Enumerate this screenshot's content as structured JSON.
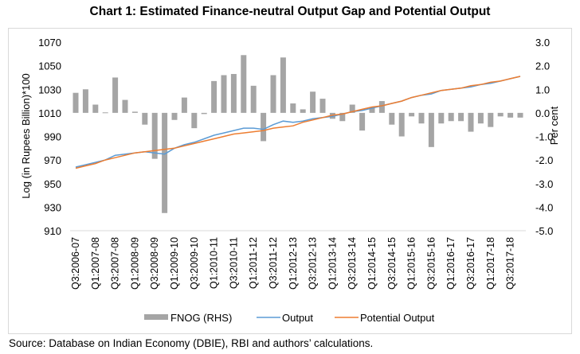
{
  "title": "Chart 1: Estimated Finance-neutral Output Gap and Potential Output",
  "source": "Source: Database on Indian Economy (DBIE), RBI and authors’ calculations.",
  "chart_data": {
    "type": "bar+line",
    "title": "Chart 1: Estimated Finance-neutral Output Gap and Potential Output",
    "ylabel_left": "Log (in Rupees Billion)*100",
    "ylabel_right": "Per cent",
    "ylim_left": [
      910,
      1070
    ],
    "ylim_right": [
      -5.0,
      3.0
    ],
    "yticks_left": [
      "910",
      "930",
      "950",
      "970",
      "990",
      "1010",
      "1030",
      "1050",
      "1070"
    ],
    "yticks_right": [
      "-5.0",
      "-4.0",
      "-3.0",
      "-2.0",
      "-1.0",
      "0.0",
      "1.0",
      "2.0",
      "3.0"
    ],
    "grid": false,
    "legend_position": "bottom",
    "x_tick_labels": [
      "Q3:2006-07",
      "Q1:2007-08",
      "Q3:2007-08",
      "Q1:2008-09",
      "Q3:2008-09",
      "Q1:2009-10",
      "Q3:2009-10",
      "Q1:2010-11",
      "Q3:2010-11",
      "Q1:2011-12",
      "Q3:2011-12",
      "Q1:2012-13",
      "Q3:2012-13",
      "Q1:2013-14",
      "Q3:2013-14",
      "Q1:2014-15",
      "Q3:2014-15",
      "Q1:2015-16",
      "Q3:2015-16",
      "Q1:2016-17",
      "Q3:2016-17",
      "Q1:2017-18",
      "Q3:2017-18"
    ],
    "n_periods": 46,
    "series": [
      {
        "name": "FNOG (RHS)",
        "type": "bar",
        "axis": "right",
        "color": "#a5a5a5",
        "values": [
          0.85,
          1.0,
          0.35,
          0.02,
          1.5,
          0.55,
          0.05,
          -0.5,
          -1.95,
          -4.25,
          -0.3,
          0.65,
          -0.65,
          -0.05,
          1.35,
          1.6,
          1.65,
          2.45,
          1.15,
          -1.2,
          1.6,
          2.35,
          0.4,
          0.15,
          0.9,
          0.6,
          -0.25,
          -0.35,
          0.35,
          -0.75,
          0.25,
          0.5,
          -0.5,
          -1.0,
          -0.15,
          -0.45,
          -1.45,
          -0.45,
          -0.35,
          -0.35,
          -0.8,
          -0.45,
          -0.6,
          -0.15,
          -0.2,
          -0.2
        ]
      },
      {
        "name": "Output",
        "type": "line",
        "axis": "left",
        "color": "#5b9bd5",
        "values": [
          964,
          966,
          968,
          970,
          974,
          975,
          976,
          977,
          976,
          975,
          980,
          983,
          985,
          988,
          991,
          993,
          995,
          997,
          997,
          996,
          1000,
          1003,
          1002,
          1003,
          1005,
          1006,
          1007,
          1009,
          1011,
          1012,
          1014,
          1016,
          1018,
          1020,
          1023,
          1025,
          1026,
          1029,
          1030,
          1031,
          1032,
          1034,
          1035,
          1037,
          1039,
          1041
        ]
      },
      {
        "name": "Potential Output",
        "type": "line",
        "axis": "left",
        "color": "#ed7d31",
        "values": [
          963,
          965,
          967,
          970,
          972,
          974,
          976,
          977,
          978,
          979,
          980,
          982,
          984,
          986,
          988,
          990,
          992,
          993,
          994,
          995,
          997,
          998,
          999,
          1002,
          1004,
          1006,
          1008,
          1009,
          1011,
          1013,
          1015,
          1016,
          1018,
          1020,
          1023,
          1025,
          1027,
          1029,
          1030,
          1031,
          1033,
          1034,
          1036,
          1037,
          1039,
          1041
        ]
      }
    ]
  }
}
